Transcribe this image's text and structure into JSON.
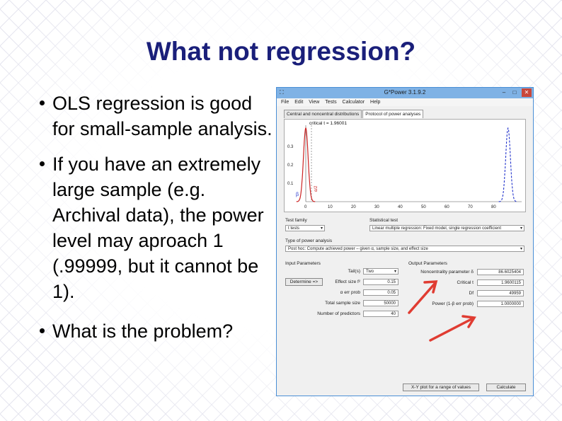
{
  "slide": {
    "title": "What not regression?",
    "bullets": [
      "OLS regression is good for small-sample analysis.",
      "If you have an extremely large sample (e.g. Archival data), the power level may aproach 1 (.99999, but it cannot be 1).",
      "What is the problem?"
    ]
  },
  "window": {
    "title": "G*Power 3.1.9.2",
    "menu": [
      "File",
      "Edit",
      "View",
      "Tests",
      "Calculator",
      "Help"
    ],
    "tabs": [
      "Central and noncentral distributions",
      "Protocol of power analyses"
    ],
    "critical_label": "critical t = 1.96001",
    "plot": {
      "y_ticks": [
        "0.3",
        "0.2",
        "0.1"
      ],
      "x_ticks": [
        "0",
        "10",
        "20",
        "30",
        "40",
        "50",
        "60",
        "70",
        "80"
      ],
      "beta_label": "β",
      "alpha_label": "α/2",
      "central_color": "#cc2222",
      "noncentral_color": "#2233cc"
    },
    "test_family": {
      "label": "Test family",
      "value": "t tests"
    },
    "statistical_test": {
      "label": "Statistical test",
      "value": "Linear multiple regression: Fixed model, single regression coefficient"
    },
    "type_of_power": {
      "label": "Type of power analysis",
      "value": "Post hoc: Compute achieved power – given α, sample size, and effect size"
    },
    "input": {
      "header": "Input Parameters",
      "determine_button": "Determine =>",
      "params": [
        {
          "label": "Tail(s)",
          "value": "Two"
        },
        {
          "label": "Effect size f²",
          "value": "0.15"
        },
        {
          "label": "α err prob",
          "value": "0.05"
        },
        {
          "label": "Total sample size",
          "value": "50000"
        },
        {
          "label": "Number of predictors",
          "value": "40"
        }
      ]
    },
    "output": {
      "header": "Output Parameters",
      "params": [
        {
          "label": "Noncentrality parameter δ",
          "value": "86.6025404"
        },
        {
          "label": "Critical t",
          "value": "1.9600115"
        },
        {
          "label": "Df",
          "value": "49959"
        },
        {
          "label": "Power (1-β err prob)",
          "value": "1.0000000"
        }
      ]
    },
    "xy_button": "X-Y plot for a range of values",
    "calculate_button": "Calculate",
    "arrow_color": "#e03c32"
  }
}
